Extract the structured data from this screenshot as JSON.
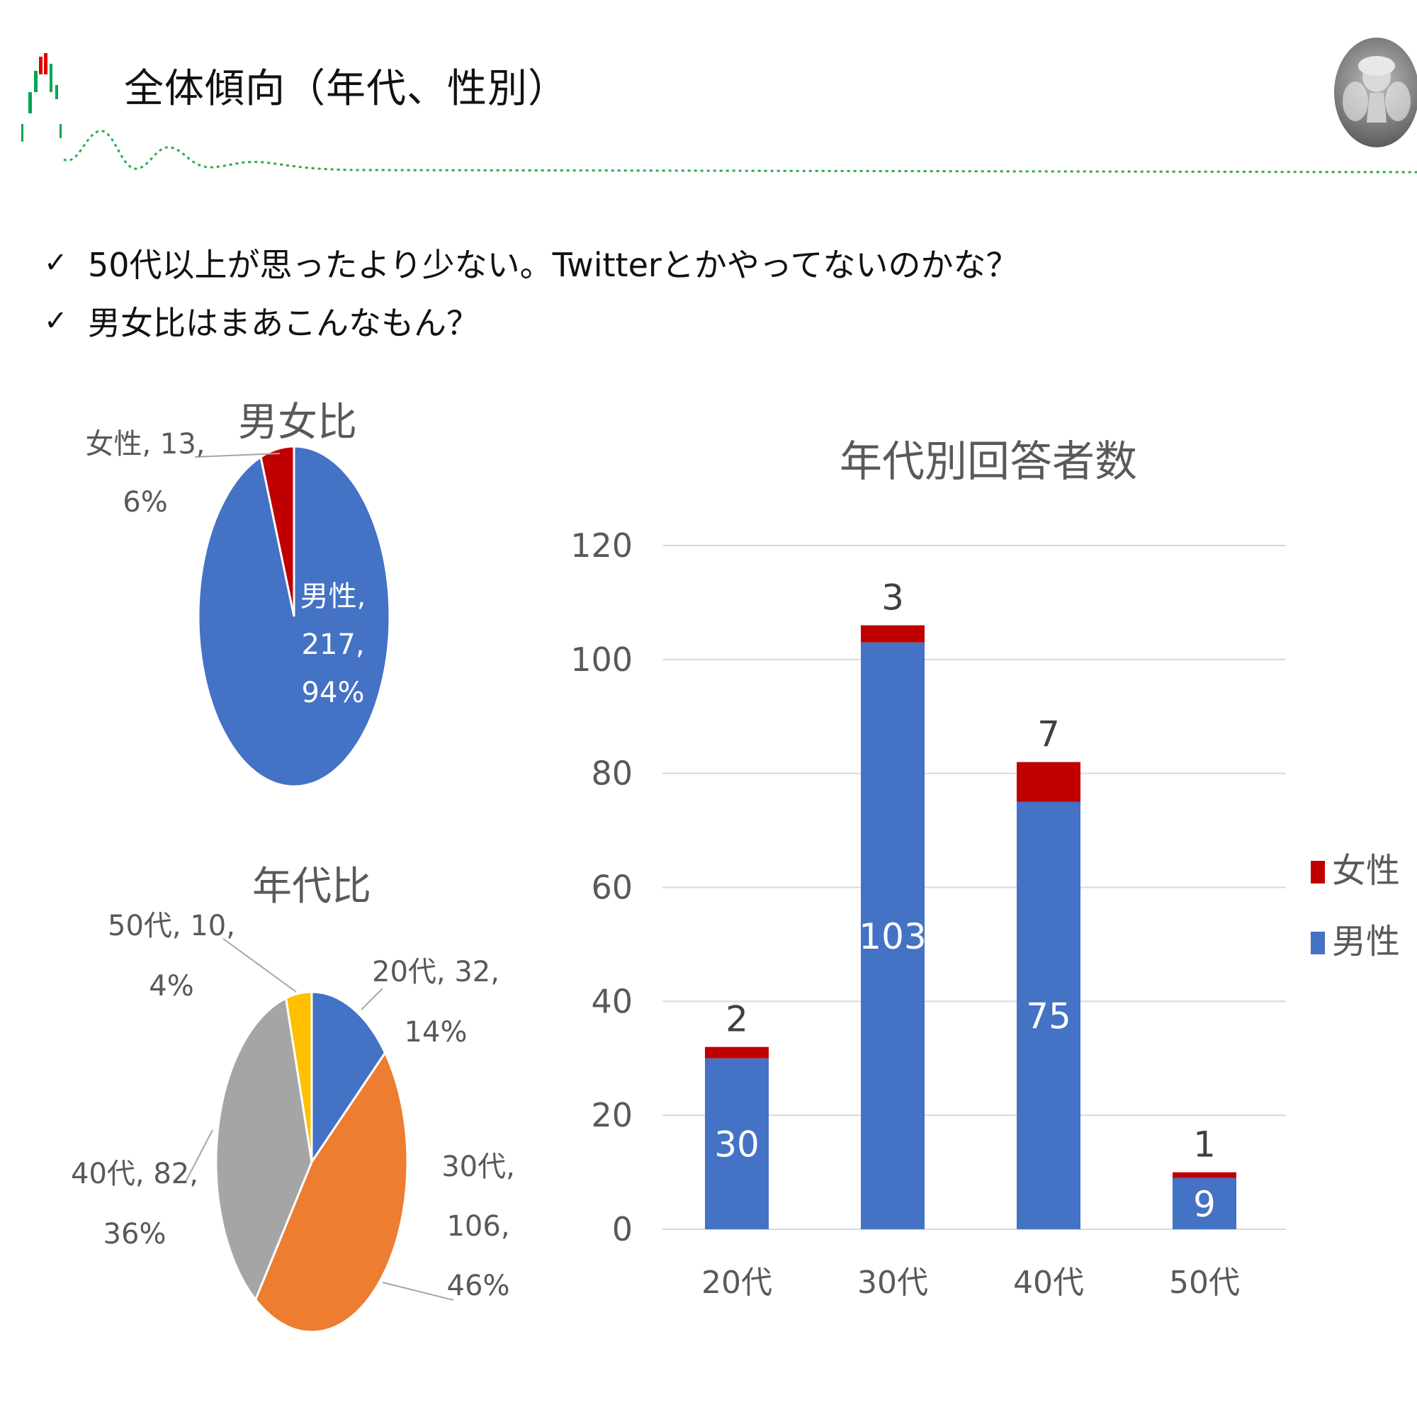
{
  "slide": {
    "title": "全体傾向（年代、性別）",
    "bullets": [
      "50代以上が思ったより少ない。Twitterとかやってないのかな？",
      "男女比はまあこんなもん？"
    ],
    "check_icon": "check-icon",
    "avatar_icon": "fairy-avatar-icon"
  },
  "chart_data": [
    {
      "type": "pie",
      "title": "男女比",
      "slices": [
        {
          "name": "男性",
          "value": 217,
          "percent": "94%",
          "color": "#4472C4"
        },
        {
          "name": "女性",
          "value": 13,
          "percent": "6%",
          "color": "#C00000"
        }
      ]
    },
    {
      "type": "pie",
      "title": "年代比",
      "slices": [
        {
          "name": "20代",
          "value": 32,
          "percent": "14%",
          "color": "#4472C4"
        },
        {
          "name": "30代",
          "value": 106,
          "percent": "46%",
          "color": "#ED7D31"
        },
        {
          "name": "40代",
          "value": 82,
          "percent": "36%",
          "color": "#A5A5A5"
        },
        {
          "name": "50代",
          "value": 10,
          "percent": "4%",
          "color": "#FFC000"
        }
      ]
    },
    {
      "type": "bar",
      "stacked": true,
      "title": "年代別回答者数",
      "categories": [
        "20代",
        "30代",
        "40代",
        "50代"
      ],
      "series": [
        {
          "name": "男性",
          "values": [
            30,
            103,
            75,
            9
          ],
          "color": "#4472C4"
        },
        {
          "name": "女性",
          "values": [
            2,
            3,
            7,
            1
          ],
          "color": "#C00000"
        }
      ],
      "ylim": [
        0,
        120
      ],
      "yticks": [
        0,
        20,
        40,
        60,
        80,
        100,
        120
      ],
      "grid": true,
      "legend": "right"
    }
  ]
}
